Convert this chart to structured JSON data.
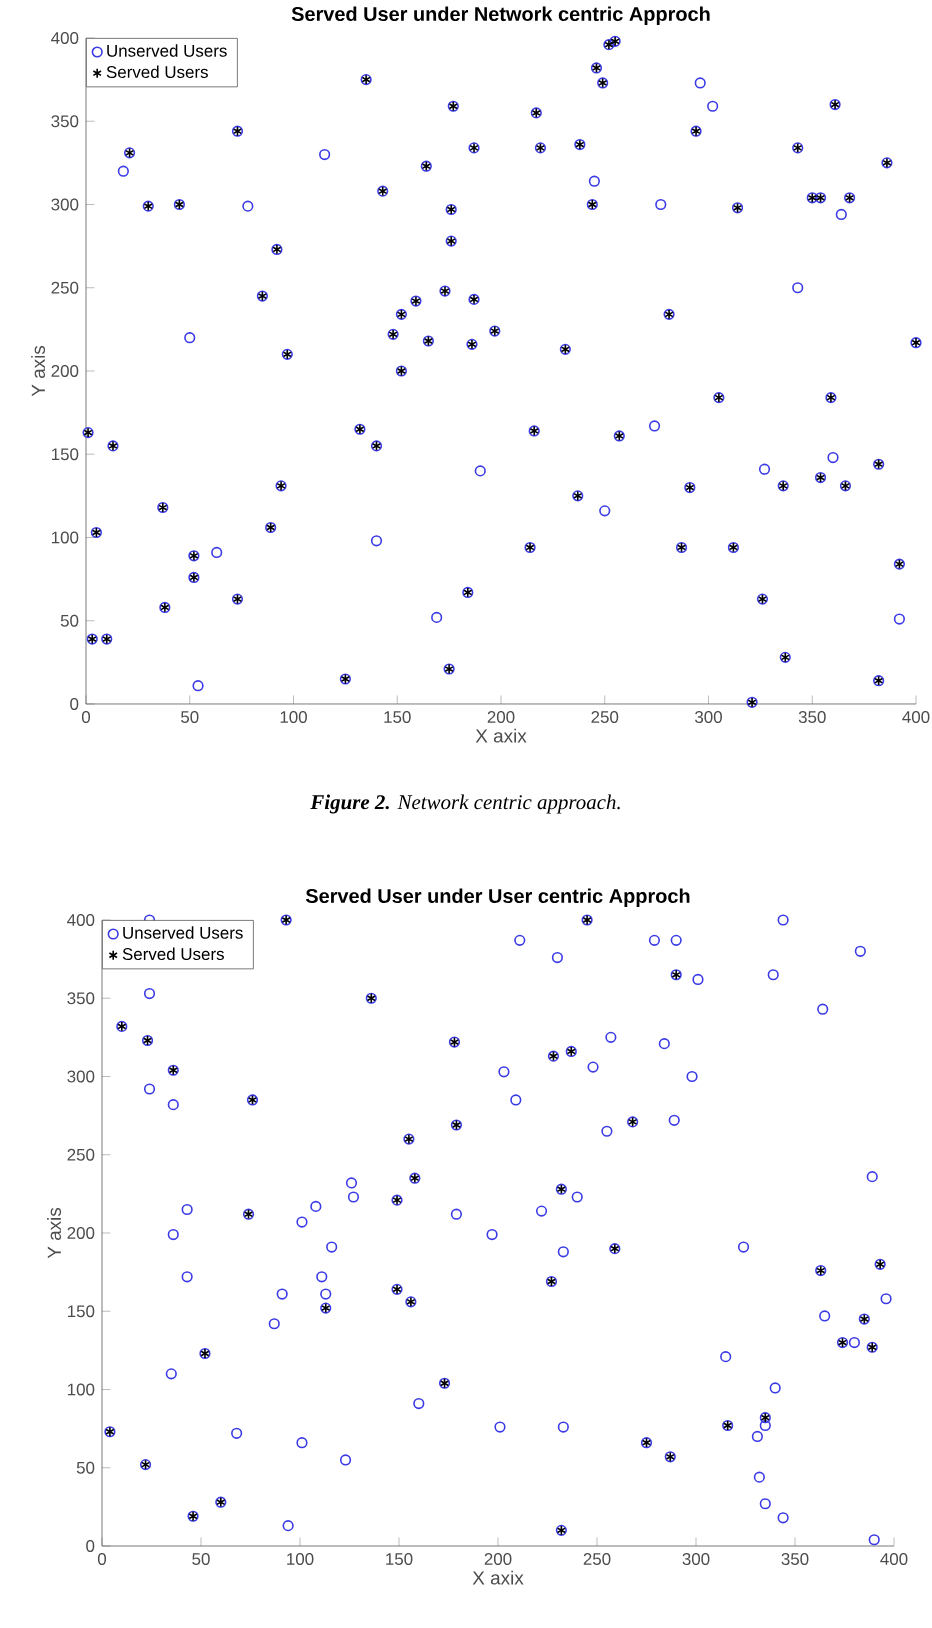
{
  "chart_data": [
    {
      "type": "scatter",
      "title": "Served User under Network centric Approch",
      "xlabel": "X axix",
      "ylabel": "Y axis",
      "xlim": [
        0,
        400
      ],
      "ylim": [
        0,
        400
      ],
      "xticks": [
        0,
        50,
        100,
        150,
        200,
        250,
        300,
        350,
        400
      ],
      "yticks": [
        0,
        50,
        100,
        150,
        200,
        250,
        300,
        350,
        400
      ],
      "legend": "top left",
      "grid": false,
      "annotations": [
        "**Figure 2.** Network centric approach."
      ],
      "series": [
        {
          "name": "Unserved Users",
          "color": "#3a3ae6",
          "marker": "circle",
          "x": [
            21,
            30,
            45,
            73,
            92,
            85,
            97,
            135,
            143,
            177,
            187,
            164,
            176,
            176,
            173,
            187,
            152,
            148,
            159,
            165,
            186,
            197,
            152,
            1,
            13,
            132,
            140,
            94,
            37,
            89,
            5,
            52,
            52,
            38,
            73,
            3,
            10,
            125,
            184,
            175,
            255,
            252,
            246,
            249,
            217,
            361,
            294,
            219,
            238,
            343,
            386,
            244,
            314,
            350,
            354,
            368,
            281,
            231,
            400,
            305,
            359,
            216,
            257,
            382,
            291,
            336,
            354,
            366,
            237,
            214,
            287,
            312,
            392,
            326,
            337,
            382,
            321,
            18,
            115,
            78,
            50,
            190,
            63,
            140,
            169,
            54,
            296,
            302,
            245,
            277,
            364,
            343,
            274,
            327,
            360,
            250,
            392
          ],
          "values": [
            331,
            299,
            300,
            344,
            273,
            245,
            210,
            375,
            308,
            359,
            334,
            323,
            297,
            278,
            248,
            243,
            234,
            222,
            242,
            218,
            216,
            224,
            200,
            163,
            155,
            165,
            155,
            131,
            118,
            106,
            103,
            89,
            76,
            58,
            63,
            39,
            39,
            15,
            67,
            21,
            398,
            396,
            382,
            373,
            355,
            360,
            344,
            334,
            336,
            334,
            325,
            300,
            298,
            304,
            304,
            304,
            234,
            213,
            217,
            184,
            184,
            164,
            161,
            144,
            130,
            131,
            136,
            131,
            125,
            94,
            94,
            94,
            84,
            63,
            28,
            14,
            1,
            320,
            330,
            299,
            220,
            140,
            91,
            98,
            52,
            11,
            373,
            359,
            314,
            300,
            294,
            250,
            167,
            141,
            148,
            116,
            51
          ]
        },
        {
          "name": "Served Users",
          "color": "#000000",
          "marker": "cross",
          "x": [
            21,
            30,
            45,
            73,
            92,
            85,
            97,
            135,
            143,
            177,
            187,
            164,
            176,
            176,
            173,
            187,
            152,
            148,
            159,
            165,
            186,
            197,
            152,
            1,
            13,
            132,
            140,
            94,
            37,
            89,
            5,
            52,
            52,
            38,
            73,
            3,
            10,
            125,
            184,
            175,
            255,
            252,
            246,
            249,
            217,
            361,
            294,
            219,
            238,
            343,
            386,
            244,
            314,
            350,
            354,
            368,
            281,
            231,
            400,
            305,
            359,
            216,
            257,
            382,
            291,
            336,
            354,
            366,
            237,
            214,
            287,
            312,
            392,
            326,
            337,
            382,
            321
          ],
          "values": [
            331,
            299,
            300,
            344,
            273,
            245,
            210,
            375,
            308,
            359,
            334,
            323,
            297,
            278,
            248,
            243,
            234,
            222,
            242,
            218,
            216,
            224,
            200,
            163,
            155,
            165,
            155,
            131,
            118,
            106,
            103,
            89,
            76,
            58,
            63,
            39,
            39,
            15,
            67,
            21,
            398,
            396,
            382,
            373,
            355,
            360,
            344,
            334,
            336,
            334,
            325,
            300,
            298,
            304,
            304,
            304,
            234,
            213,
            217,
            184,
            184,
            164,
            161,
            144,
            130,
            131,
            136,
            131,
            125,
            94,
            94,
            94,
            84,
            63,
            28,
            14,
            1
          ]
        }
      ]
    },
    {
      "type": "scatter",
      "title": "Served User under User  centric Approch",
      "xlabel": "X axix",
      "ylabel": "Y axis",
      "xlim": [
        0,
        400
      ],
      "ylim": [
        0,
        400
      ],
      "xticks": [
        0,
        50,
        100,
        150,
        200,
        250,
        300,
        350,
        400
      ],
      "yticks": [
        0,
        50,
        100,
        150,
        200,
        250,
        300,
        350,
        400
      ],
      "legend": "top left",
      "grid": false,
      "series": [
        {
          "name": "Unserved Users",
          "color": "#3a3ae6",
          "marker": "circle",
          "x": [
            93,
            136,
            10,
            23,
            36,
            76,
            178,
            179,
            155,
            158,
            149,
            74,
            149,
            156,
            113,
            52,
            173,
            4,
            22,
            60,
            46,
            245,
            290,
            228,
            237,
            268,
            232,
            259,
            227,
            363,
            393,
            385,
            374,
            389,
            316,
            335,
            275,
            287,
            232,
            24,
            24,
            24,
            36,
            43,
            36,
            43,
            35,
            108,
            101,
            126,
            127,
            116,
            111,
            113,
            91,
            87,
            160,
            68,
            101,
            123,
            94,
            179,
            197,
            201,
            211,
            230,
            279,
            290,
            344,
            383,
            339,
            301,
            364,
            257,
            284,
            203,
            209,
            248,
            298,
            255,
            289,
            389,
            240,
            222,
            233,
            324,
            396,
            365,
            380,
            315,
            340,
            233,
            335,
            331,
            332,
            335,
            344,
            390
          ],
          "values": [
            400,
            350,
            332,
            323,
            304,
            285,
            322,
            269,
            260,
            235,
            221,
            212,
            164,
            156,
            152,
            123,
            104,
            73,
            52,
            28,
            19,
            400,
            365,
            313,
            316,
            271,
            228,
            190,
            169,
            176,
            180,
            145,
            130,
            127,
            77,
            82,
            66,
            57,
            10,
            400,
            353,
            292,
            282,
            215,
            199,
            172,
            110,
            217,
            207,
            232,
            223,
            191,
            172,
            161,
            161,
            142,
            91,
            72,
            66,
            55,
            13,
            212,
            199,
            76,
            387,
            376,
            387,
            387,
            400,
            380,
            365,
            362,
            343,
            325,
            321,
            303,
            285,
            306,
            300,
            265,
            272,
            236,
            223,
            214,
            188,
            191,
            158,
            147,
            130,
            121,
            101,
            76,
            77,
            70,
            44,
            27,
            18,
            4
          ]
        },
        {
          "name": "Served Users",
          "color": "#000000",
          "marker": "cross",
          "x": [
            93,
            136,
            10,
            23,
            36,
            76,
            178,
            179,
            155,
            158,
            149,
            74,
            149,
            156,
            113,
            52,
            173,
            4,
            22,
            60,
            46,
            245,
            290,
            228,
            237,
            268,
            232,
            259,
            227,
            363,
            393,
            385,
            374,
            389,
            316,
            335,
            275,
            287,
            232
          ],
          "values": [
            400,
            350,
            332,
            323,
            304,
            285,
            322,
            269,
            260,
            235,
            221,
            212,
            164,
            156,
            152,
            123,
            104,
            73,
            52,
            28,
            19,
            400,
            365,
            313,
            316,
            271,
            228,
            190,
            169,
            176,
            180,
            145,
            130,
            127,
            77,
            82,
            66,
            57,
            10
          ]
        }
      ]
    }
  ]
}
